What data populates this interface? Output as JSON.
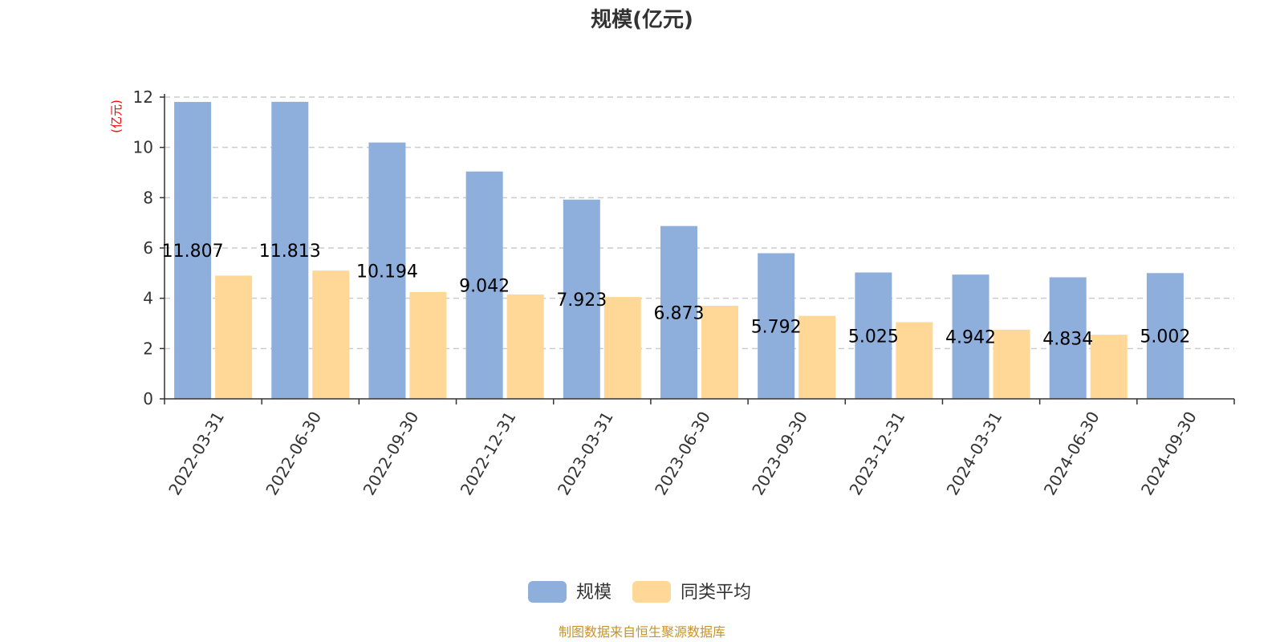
{
  "chart_data": {
    "type": "bar",
    "title": "规模(亿元)",
    "unit_label": "(亿元)",
    "categories": [
      "2022-03-31",
      "2022-06-30",
      "2022-09-30",
      "2022-12-31",
      "2023-03-31",
      "2023-06-30",
      "2023-09-30",
      "2023-12-31",
      "2024-03-31",
      "2024-06-30",
      "2024-09-30"
    ],
    "series": [
      {
        "name": "规模",
        "color": "#8eaedc",
        "values": [
          11.807,
          11.813,
          10.194,
          9.042,
          7.923,
          6.873,
          5.792,
          5.025,
          4.942,
          4.834,
          5.002
        ],
        "labels": [
          "11.807",
          "11.813",
          "10.194",
          "9.042",
          "7.923",
          "6.873",
          "5.792",
          "5.025",
          "4.942",
          "4.834",
          "5.002"
        ]
      },
      {
        "name": "同类平均",
        "color": "#ffd898",
        "values": [
          4.9,
          5.1,
          4.25,
          4.15,
          4.05,
          3.7,
          3.3,
          3.05,
          2.75,
          2.55,
          null
        ]
      }
    ],
    "ylim": [
      0,
      12
    ],
    "yticks": [
      0,
      2,
      4,
      6,
      8,
      10,
      12
    ],
    "grid": true,
    "legend_position": "bottom-center"
  },
  "colors": {
    "unit_label": "#ff0000",
    "source": "#c8922a",
    "grid": "#cccccc",
    "axis": "#333333"
  },
  "source_text": "制图数据来自恒生聚源数据库"
}
